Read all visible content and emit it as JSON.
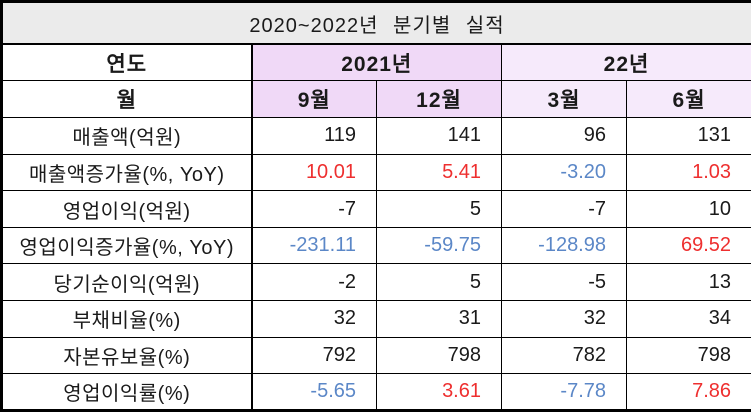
{
  "title": "2020~2022년  분기별  실적",
  "colors": {
    "title_bg": "#ebebeb",
    "year_2021_bg": "#f0d9f7",
    "year_22_bg": "#f6eafb",
    "positive_value": "#ee2f2f",
    "negative_value": "#5b87c7",
    "default_text": "#1a1a1a",
    "border": "#000000"
  },
  "header": {
    "year_label": "연도",
    "month_label": "월",
    "year_groups": [
      {
        "label": "2021년",
        "months": [
          "9월",
          "12월"
        ]
      },
      {
        "label": "22년",
        "months": [
          "3월",
          "6월"
        ]
      }
    ]
  },
  "chart_data": {
    "type": "table",
    "title": "2020~2022년 분기별 실적",
    "columns": [
      "2021년 9월",
      "2021년 12월",
      "22년 3월",
      "22년 6월"
    ],
    "rows": [
      {
        "label": "매출액(억원)",
        "values": [
          "119",
          "141",
          "96",
          "131"
        ],
        "styles": [
          "plain",
          "plain",
          "plain",
          "plain"
        ]
      },
      {
        "label": "매출액증가율(%, YoY)",
        "values": [
          "10.01",
          "5.41",
          "-3.20",
          "1.03"
        ],
        "styles": [
          "pos",
          "pos",
          "neg",
          "pos"
        ]
      },
      {
        "label": "영업이익(억원)",
        "values": [
          "-7",
          "5",
          "-7",
          "10"
        ],
        "styles": [
          "plain",
          "plain",
          "plain",
          "plain"
        ]
      },
      {
        "label": "영업이익증가율(%, YoY)",
        "values": [
          "-231.11",
          "-59.75",
          "-128.98",
          "69.52"
        ],
        "styles": [
          "neg",
          "neg",
          "neg",
          "pos"
        ]
      },
      {
        "label": "당기순이익(억원)",
        "values": [
          "-2",
          "5",
          "-5",
          "13"
        ],
        "styles": [
          "plain",
          "plain",
          "plain",
          "plain"
        ]
      },
      {
        "label": "부채비율(%)",
        "values": [
          "32",
          "31",
          "32",
          "34"
        ],
        "styles": [
          "plain",
          "plain",
          "plain",
          "plain"
        ]
      },
      {
        "label": "자본유보율(%)",
        "values": [
          "792",
          "798",
          "782",
          "798"
        ],
        "styles": [
          "plain",
          "plain",
          "plain",
          "plain"
        ]
      },
      {
        "label": "영업이익률(%)",
        "values": [
          "-5.65",
          "3.61",
          "-7.78",
          "7.86"
        ],
        "styles": [
          "neg",
          "pos",
          "neg",
          "pos"
        ]
      }
    ]
  }
}
